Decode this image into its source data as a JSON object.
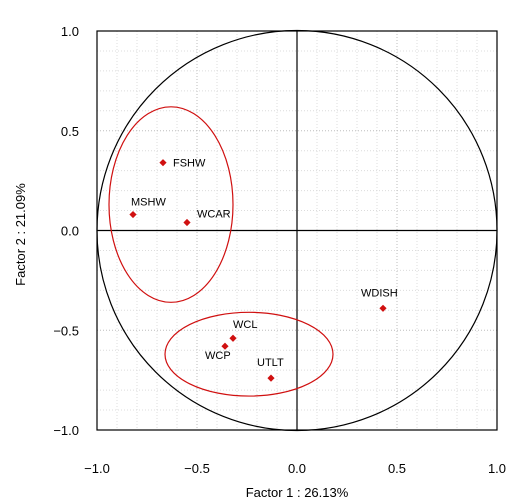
{
  "chart_data": {
    "type": "scatter",
    "title": "",
    "xlabel": "Factor 1 : 26.13%",
    "ylabel": "Factor 2 : 21.09%",
    "xlim": [
      -1.0,
      1.0
    ],
    "ylim": [
      -1.0,
      1.0
    ],
    "x_ticks": [
      "−1.0",
      "−0.5",
      "0.0",
      "0.5",
      "1.0"
    ],
    "y_ticks": [
      "1.0",
      "0.5",
      "0.0",
      "−0.5",
      "−1.0"
    ],
    "grid": true,
    "unit_circle": true,
    "point_color": "#d01010",
    "ellipse_color": "#d01010",
    "points": [
      {
        "label": "FSHW",
        "x": -0.67,
        "y": 0.34
      },
      {
        "label": "MSHW",
        "x": -0.82,
        "y": 0.08
      },
      {
        "label": "WCAR",
        "x": -0.55,
        "y": 0.04
      },
      {
        "label": "WDISH",
        "x": 0.43,
        "y": -0.39
      },
      {
        "label": "WCL",
        "x": -0.32,
        "y": -0.54
      },
      {
        "label": "WCP",
        "x": -0.36,
        "y": -0.58
      },
      {
        "label": "UTLT",
        "x": -0.13,
        "y": -0.74
      }
    ],
    "ellipses": [
      {
        "cx": -0.63,
        "cy": 0.13,
        "rx": 0.31,
        "ry": 0.49
      },
      {
        "cx": -0.24,
        "cy": -0.62,
        "rx": 0.42,
        "ry": 0.21
      }
    ]
  }
}
